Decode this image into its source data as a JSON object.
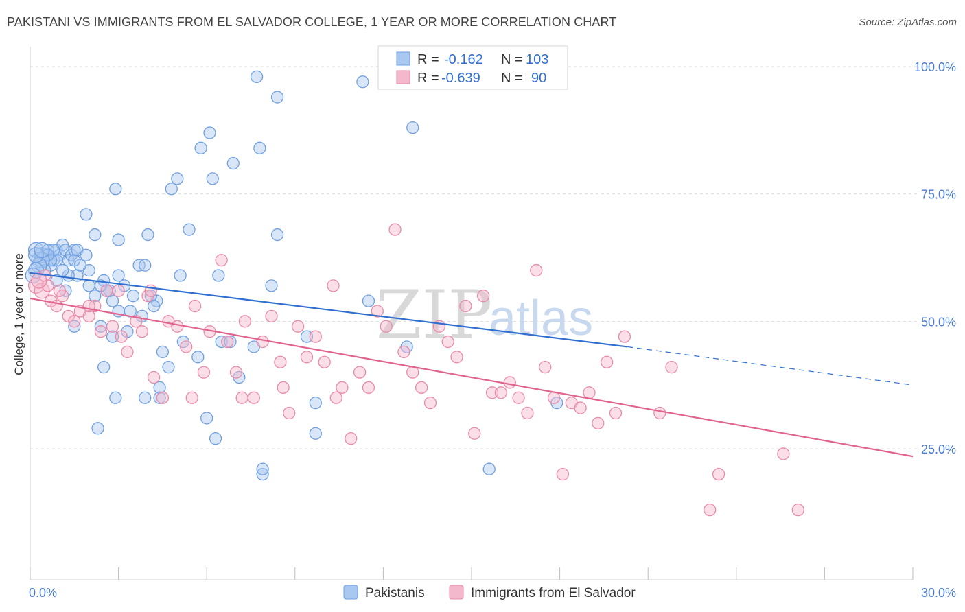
{
  "header": {
    "title": "PAKISTANI VS IMMIGRANTS FROM EL SALVADOR COLLEGE, 1 YEAR OR MORE CORRELATION CHART",
    "source": "Source: ZipAtlas.com"
  },
  "legend_top": {
    "rows": [
      {
        "r_label": "R =",
        "r_value": "-0.162",
        "n_label": "N =",
        "n_value": "103",
        "color": "#a9c8f0"
      },
      {
        "r_label": "R =",
        "r_value": "-0.639",
        "n_label": "N =",
        "n_value": "90",
        "color": "#f4b8cc"
      }
    ]
  },
  "watermark": {
    "zip": "ZIP",
    "atlas": "atlas"
  },
  "chart_data": {
    "type": "scatter",
    "ylabel": "College, 1 year or more",
    "xlim": [
      0,
      30
    ],
    "ylim": [
      0,
      105
    ],
    "x_tick_labels": [
      {
        "value": 0,
        "label": "0.0%"
      },
      {
        "value": 30,
        "label": "30.0%"
      }
    ],
    "y_ticks": [
      {
        "value": 25,
        "label": "25.0%"
      },
      {
        "value": 50,
        "label": "50.0%"
      },
      {
        "value": 75,
        "label": "75.0%"
      },
      {
        "value": 100,
        "label": "100.0%"
      }
    ],
    "x_minor_ticks": [
      0,
      3,
      6,
      9,
      12,
      15,
      18,
      21,
      24,
      27,
      30
    ],
    "series": [
      {
        "name": "Pakistanis",
        "color": "#6f9fe0",
        "fill": "#a9c8f0",
        "trend": {
          "x0": 0,
          "y0": 59.5,
          "x1": 20.3,
          "y1": 45.0,
          "dash_x1": 30,
          "dash_y1": 37.5,
          "color": "#2f6fd1"
        },
        "points": [
          [
            0.2,
            64
          ],
          [
            0.3,
            62
          ],
          [
            0.4,
            63
          ],
          [
            0.5,
            63
          ],
          [
            0.6,
            64
          ],
          [
            0.7,
            61
          ],
          [
            0.8,
            62
          ],
          [
            0.9,
            64
          ],
          [
            1.0,
            63
          ],
          [
            1.1,
            65
          ],
          [
            1.2,
            64
          ],
          [
            1.3,
            62
          ],
          [
            1.4,
            63
          ],
          [
            1.5,
            64
          ],
          [
            0.5,
            60
          ],
          [
            0.9,
            58
          ],
          [
            1.2,
            56
          ],
          [
            1.6,
            59
          ],
          [
            2.0,
            57
          ],
          [
            2.2,
            55
          ],
          [
            2.5,
            58
          ],
          [
            2.6,
            56
          ],
          [
            2.8,
            54
          ],
          [
            3.0,
            59
          ],
          [
            3.2,
            57
          ],
          [
            3.5,
            55
          ],
          [
            3.7,
            61
          ],
          [
            3.9,
            61
          ],
          [
            4.0,
            67
          ],
          [
            3.0,
            66
          ],
          [
            2.2,
            67
          ],
          [
            1.9,
            71
          ],
          [
            2.9,
            76
          ],
          [
            4.3,
            54
          ],
          [
            4.5,
            44
          ],
          [
            4.7,
            41
          ],
          [
            5.1,
            59
          ],
          [
            5.4,
            68
          ],
          [
            5.2,
            46
          ],
          [
            5.7,
            43
          ],
          [
            6.0,
            31
          ],
          [
            6.3,
            27
          ],
          [
            6.5,
            46
          ],
          [
            6.8,
            46
          ],
          [
            7.1,
            39
          ],
          [
            7.6,
            45
          ],
          [
            8.2,
            57
          ],
          [
            8.4,
            67
          ],
          [
            8.4,
            94
          ],
          [
            9.4,
            47
          ],
          [
            9.7,
            34
          ],
          [
            9.7,
            28
          ],
          [
            11.5,
            54
          ],
          [
            12.8,
            45
          ],
          [
            13.0,
            88
          ],
          [
            7.7,
            98
          ],
          [
            11.3,
            97
          ],
          [
            5.0,
            78
          ],
          [
            4.8,
            76
          ],
          [
            5.8,
            84
          ],
          [
            6.1,
            87
          ],
          [
            6.9,
            81
          ],
          [
            7.8,
            84
          ],
          [
            6.2,
            78
          ],
          [
            1.5,
            49
          ],
          [
            2.4,
            49
          ],
          [
            2.8,
            47
          ],
          [
            3.3,
            48
          ],
          [
            3.8,
            51
          ],
          [
            4.4,
            37
          ],
          [
            4.4,
            35
          ],
          [
            3.9,
            35
          ],
          [
            2.9,
            35
          ],
          [
            2.5,
            41
          ],
          [
            2.3,
            29
          ],
          [
            7.9,
            20
          ],
          [
            7.9,
            21
          ],
          [
            15.6,
            21
          ],
          [
            17.9,
            34
          ],
          [
            4.1,
            55
          ],
          [
            4.2,
            53
          ],
          [
            3.4,
            52
          ],
          [
            3.0,
            52
          ],
          [
            2.7,
            56
          ],
          [
            2.4,
            57
          ],
          [
            2.0,
            60
          ],
          [
            1.7,
            61
          ],
          [
            1.5,
            62
          ],
          [
            1.3,
            59
          ],
          [
            1.1,
            60
          ],
          [
            0.9,
            62
          ],
          [
            0.8,
            64
          ],
          [
            0.7,
            62
          ],
          [
            0.6,
            63
          ],
          [
            0.4,
            62
          ],
          [
            0.3,
            61
          ],
          [
            0.2,
            60
          ],
          [
            0.1,
            59
          ],
          [
            0.2,
            63
          ],
          [
            0.4,
            64
          ],
          [
            1.6,
            64
          ],
          [
            1.9,
            63
          ],
          [
            6.4,
            59
          ]
        ]
      },
      {
        "name": "Immigrants from El Salvador",
        "color": "#e88aa8",
        "fill": "#f4b8cc",
        "trend": {
          "x0": 0,
          "y0": 54.5,
          "x1": 30,
          "y1": 23.5,
          "color": "#e0648e"
        },
        "points": [
          [
            0.2,
            57
          ],
          [
            0.4,
            56
          ],
          [
            0.5,
            59
          ],
          [
            0.7,
            54
          ],
          [
            0.9,
            53
          ],
          [
            1.1,
            55
          ],
          [
            1.3,
            51
          ],
          [
            1.5,
            50
          ],
          [
            1.7,
            52
          ],
          [
            2.0,
            51
          ],
          [
            2.2,
            53
          ],
          [
            2.4,
            48
          ],
          [
            2.6,
            56
          ],
          [
            2.8,
            49
          ],
          [
            3.1,
            47
          ],
          [
            3.3,
            44
          ],
          [
            3.6,
            50
          ],
          [
            3.8,
            48
          ],
          [
            4.0,
            55
          ],
          [
            4.2,
            39
          ],
          [
            4.5,
            35
          ],
          [
            4.7,
            50
          ],
          [
            5.0,
            49
          ],
          [
            5.3,
            45
          ],
          [
            5.6,
            53
          ],
          [
            5.9,
            40
          ],
          [
            6.1,
            48
          ],
          [
            6.5,
            62
          ],
          [
            6.7,
            46
          ],
          [
            7.0,
            40
          ],
          [
            7.3,
            50
          ],
          [
            7.6,
            35
          ],
          [
            7.9,
            46
          ],
          [
            8.2,
            51
          ],
          [
            8.5,
            42
          ],
          [
            8.8,
            32
          ],
          [
            9.1,
            49
          ],
          [
            9.4,
            43
          ],
          [
            9.7,
            47
          ],
          [
            10.0,
            42
          ],
          [
            10.3,
            57
          ],
          [
            10.6,
            37
          ],
          [
            10.9,
            27
          ],
          [
            11.2,
            40
          ],
          [
            11.5,
            37
          ],
          [
            11.8,
            52
          ],
          [
            12.1,
            49
          ],
          [
            12.4,
            68
          ],
          [
            12.7,
            44
          ],
          [
            13.0,
            40
          ],
          [
            13.3,
            37
          ],
          [
            13.6,
            34
          ],
          [
            13.9,
            49
          ],
          [
            14.2,
            46
          ],
          [
            14.5,
            43
          ],
          [
            14.8,
            53
          ],
          [
            15.1,
            28
          ],
          [
            15.4,
            55
          ],
          [
            15.7,
            36
          ],
          [
            16.0,
            36
          ],
          [
            16.3,
            38
          ],
          [
            16.6,
            35
          ],
          [
            16.9,
            32
          ],
          [
            17.2,
            60
          ],
          [
            17.5,
            41
          ],
          [
            17.8,
            35
          ],
          [
            18.1,
            20
          ],
          [
            18.4,
            34
          ],
          [
            18.7,
            33
          ],
          [
            19.0,
            36
          ],
          [
            19.3,
            30
          ],
          [
            19.6,
            42
          ],
          [
            19.9,
            32
          ],
          [
            20.2,
            47
          ],
          [
            21.4,
            32
          ],
          [
            21.8,
            41
          ],
          [
            23.4,
            20
          ],
          [
            23.1,
            13
          ],
          [
            25.6,
            24
          ],
          [
            26.1,
            13
          ],
          [
            0.6,
            57
          ],
          [
            0.3,
            58
          ],
          [
            1.0,
            56
          ],
          [
            2.0,
            53
          ],
          [
            3.0,
            56
          ],
          [
            4.1,
            56
          ],
          [
            5.5,
            35
          ],
          [
            7.2,
            35
          ],
          [
            8.6,
            37
          ],
          [
            10.4,
            35
          ]
        ]
      }
    ]
  },
  "legend_bottom": {
    "items": [
      {
        "label": "Pakistanis",
        "color": "#a9c8f0",
        "stroke": "#6f9fe0"
      },
      {
        "label": "Immigrants from El Salvador",
        "color": "#f4b8cc",
        "stroke": "#e88aa8"
      }
    ]
  }
}
